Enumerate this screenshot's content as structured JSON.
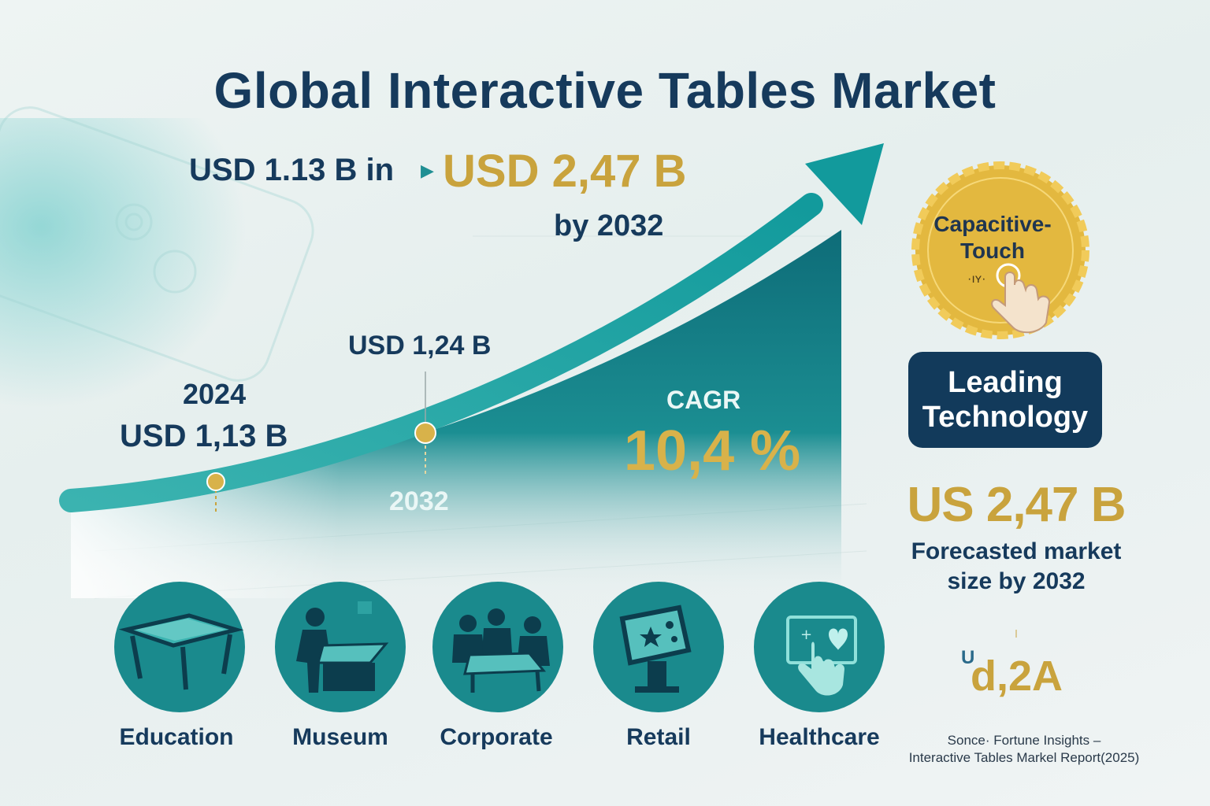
{
  "title": "Global Interactive Tables Market",
  "headline": {
    "from": "USD 1.13 B in",
    "to": "USD 2,47 B",
    "by": "by 2032"
  },
  "points": {
    "start_year": "2024",
    "start_value": "USD 1,13 B",
    "mid_value": "USD 1,24 B",
    "mid_year": "2032"
  },
  "cagr": {
    "label": "CAGR",
    "value": "10,4 %"
  },
  "badge": {
    "line1": "Capacitive-",
    "line2": "Touch",
    "glyph": "·ıʏ·"
  },
  "leading": {
    "line1": "Leading",
    "line2": "Technology"
  },
  "forecast": {
    "value": "US 2,47 B",
    "line1": "Forecasted market",
    "line2": "size by 2032"
  },
  "logo": {
    "text": "d,2A",
    "prefix": "U"
  },
  "source": {
    "line1": "Sonce· Fortune Insights –",
    "line2": "Interactive Tables Markel Report(2025)"
  },
  "segments": [
    {
      "label": "Education",
      "icon": "touch-table-icon"
    },
    {
      "label": "Museum",
      "icon": "museum-visitor-icon"
    },
    {
      "label": "Corporate",
      "icon": "meeting-table-icon"
    },
    {
      "label": "Retail",
      "icon": "kiosk-icon"
    },
    {
      "label": "Healthcare",
      "icon": "health-touch-icon"
    }
  ],
  "colors": {
    "navy": "#163a5c",
    "teal": "#1a8a8d",
    "gold": "#c9a33d"
  }
}
